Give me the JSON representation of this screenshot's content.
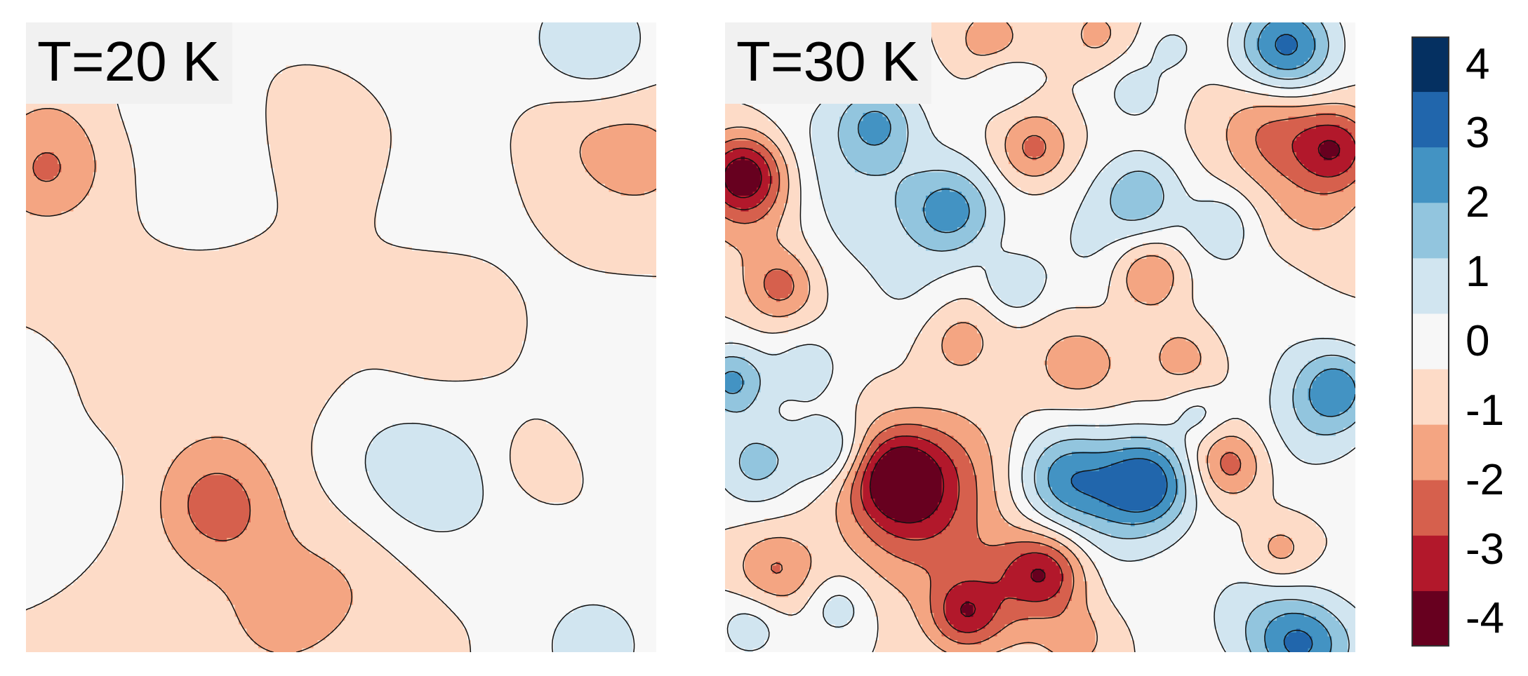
{
  "chart_data": [
    {
      "type": "heatmap",
      "subtype": "filled-contour",
      "title": "T=20 K",
      "xlabel": "",
      "ylabel": "",
      "colormap": "RdBu",
      "levels": [
        -4,
        -3,
        -2,
        -1,
        0,
        1,
        2,
        3,
        4
      ],
      "blobs": [
        {
          "x": 0.03,
          "y": 0.24,
          "amp": -1.4,
          "s": 0.055
        },
        {
          "x": 0.05,
          "y": 0.18,
          "amp": -0.9,
          "s": 0.09
        },
        {
          "x": 0.3,
          "y": 0.76,
          "amp": -1.8,
          "s": 0.06
        },
        {
          "x": 0.33,
          "y": 0.83,
          "amp": -0.9,
          "s": 0.09
        },
        {
          "x": 0.5,
          "y": 0.9,
          "amp": -0.9,
          "s": 0.08
        },
        {
          "x": 0.4,
          "y": 0.96,
          "amp": -0.9,
          "s": 0.06
        },
        {
          "x": 0.98,
          "y": 0.22,
          "amp": -1.2,
          "s": 0.08
        },
        {
          "x": 0.88,
          "y": 0.17,
          "amp": -0.9,
          "s": 0.08
        },
        {
          "x": 0.48,
          "y": 0.2,
          "amp": -0.8,
          "s": 0.06
        },
        {
          "x": 0.65,
          "y": 0.48,
          "amp": -0.8,
          "s": 0.06
        },
        {
          "x": 0.8,
          "y": 0.7,
          "amp": -0.7,
          "s": 0.04
        },
        {
          "x": 0.35,
          "y": 0.55,
          "amp": -0.6,
          "s": 0.12
        },
        {
          "x": 0.13,
          "y": 0.55,
          "amp": -0.5,
          "s": 0.1
        },
        {
          "x": 0.82,
          "y": 0.04,
          "amp": 0.5,
          "s": 0.18
        },
        {
          "x": 0.9,
          "y": 0.04,
          "amp": 1.8,
          "s": 0.06
        },
        {
          "x": 0.28,
          "y": 0.24,
          "amp": 0.8,
          "s": 0.07
        },
        {
          "x": 0.66,
          "y": 0.74,
          "amp": 1.4,
          "s": 0.08
        },
        {
          "x": 0.56,
          "y": 0.68,
          "amp": 0.8,
          "s": 0.08
        },
        {
          "x": 0.9,
          "y": 0.99,
          "amp": 1.8,
          "s": 0.06
        },
        {
          "x": 0.97,
          "y": 0.57,
          "amp": 0.9,
          "s": 0.07
        },
        {
          "x": 0.07,
          "y": 0.72,
          "amp": 0.8,
          "s": 0.06
        },
        {
          "x": 0.02,
          "y": 0.58,
          "amp": 0.7,
          "s": 0.06
        },
        {
          "x": 0.66,
          "y": 0.26,
          "amp": 0.6,
          "s": 0.05
        },
        {
          "x": 0.18,
          "y": 0.13,
          "amp": 0.5,
          "s": 0.06
        }
      ]
    },
    {
      "type": "heatmap",
      "subtype": "filled-contour",
      "title": "T=30 K",
      "xlabel": "",
      "ylabel": "",
      "colormap": "RdBu",
      "levels": [
        -4,
        -3,
        -2,
        -1,
        0,
        1,
        2,
        3,
        4
      ],
      "blobs": [
        {
          "x": 0.03,
          "y": 0.24,
          "amp": -4.4,
          "s": 0.045
        },
        {
          "x": 0.05,
          "y": 0.3,
          "amp": -1.6,
          "s": 0.07
        },
        {
          "x": 0.27,
          "y": 0.72,
          "amp": -4.3,
          "s": 0.055
        },
        {
          "x": 0.31,
          "y": 0.8,
          "amp": -2.2,
          "s": 0.08
        },
        {
          "x": 0.37,
          "y": 0.7,
          "amp": -1.2,
          "s": 0.07
        },
        {
          "x": 0.51,
          "y": 0.87,
          "amp": -3.2,
          "s": 0.045
        },
        {
          "x": 0.38,
          "y": 0.94,
          "amp": -3.0,
          "s": 0.04
        },
        {
          "x": 0.46,
          "y": 0.9,
          "amp": -1.6,
          "s": 0.07
        },
        {
          "x": 0.97,
          "y": 0.2,
          "amp": -3.3,
          "s": 0.045
        },
        {
          "x": 0.87,
          "y": 0.17,
          "amp": -2.2,
          "s": 0.06
        },
        {
          "x": 0.93,
          "y": 0.3,
          "amp": -1.1,
          "s": 0.07
        },
        {
          "x": 0.67,
          "y": 0.4,
          "amp": -2.6,
          "s": 0.04
        },
        {
          "x": 0.49,
          "y": 0.2,
          "amp": -2.4,
          "s": 0.04
        },
        {
          "x": 0.09,
          "y": 0.42,
          "amp": -2.4,
          "s": 0.04
        },
        {
          "x": 0.8,
          "y": 0.7,
          "amp": -2.6,
          "s": 0.04
        },
        {
          "x": 0.56,
          "y": 0.54,
          "amp": -1.6,
          "s": 0.055
        },
        {
          "x": 0.37,
          "y": 0.5,
          "amp": -1.6,
          "s": 0.045
        },
        {
          "x": 0.73,
          "y": 0.53,
          "amp": -1.5,
          "s": 0.045
        },
        {
          "x": 0.08,
          "y": 0.87,
          "amp": -2.1,
          "s": 0.045
        },
        {
          "x": 0.88,
          "y": 0.84,
          "amp": -1.7,
          "s": 0.035
        },
        {
          "x": 0.42,
          "y": 0.03,
          "amp": -1.7,
          "s": 0.04
        },
        {
          "x": 0.59,
          "y": 0.02,
          "amp": -1.3,
          "s": 0.035
        },
        {
          "x": 0.56,
          "y": 0.98,
          "amp": -1.3,
          "s": 0.035
        },
        {
          "x": 0.89,
          "y": 0.04,
          "amp": 4.4,
          "s": 0.055
        },
        {
          "x": 0.67,
          "y": 0.73,
          "amp": 4.2,
          "s": 0.05
        },
        {
          "x": 0.54,
          "y": 0.72,
          "amp": 2.9,
          "s": 0.055
        },
        {
          "x": 0.6,
          "y": 0.78,
          "amp": 1.6,
          "s": 0.08
        },
        {
          "x": 0.36,
          "y": 0.3,
          "amp": 3.0,
          "s": 0.05
        },
        {
          "x": 0.2,
          "y": 0.25,
          "amp": 1.8,
          "s": 0.11
        },
        {
          "x": 0.24,
          "y": 0.16,
          "amp": 2.2,
          "s": 0.04
        },
        {
          "x": 0.01,
          "y": 0.57,
          "amp": 3.2,
          "s": 0.04
        },
        {
          "x": 0.05,
          "y": 0.7,
          "amp": 2.3,
          "s": 0.05
        },
        {
          "x": 0.17,
          "y": 0.68,
          "amp": 2.3,
          "s": 0.04
        },
        {
          "x": 0.13,
          "y": 0.55,
          "amp": 1.6,
          "s": 0.04
        },
        {
          "x": 0.97,
          "y": 0.58,
          "amp": 3.0,
          "s": 0.045
        },
        {
          "x": 0.93,
          "y": 0.64,
          "amp": 1.4,
          "s": 0.07
        },
        {
          "x": 0.66,
          "y": 0.27,
          "amp": 2.2,
          "s": 0.045
        },
        {
          "x": 0.6,
          "y": 0.35,
          "amp": 1.2,
          "s": 0.08
        },
        {
          "x": 0.79,
          "y": 0.32,
          "amp": 1.6,
          "s": 0.04
        },
        {
          "x": 0.84,
          "y": 0.45,
          "amp": 1.0,
          "s": 0.07
        },
        {
          "x": 0.91,
          "y": 0.99,
          "amp": 3.2,
          "s": 0.05
        },
        {
          "x": 0.84,
          "y": 0.94,
          "amp": 1.4,
          "s": 0.07
        },
        {
          "x": 0.04,
          "y": 0.96,
          "amp": 1.6,
          "s": 0.04
        },
        {
          "x": 0.18,
          "y": 0.93,
          "amp": 1.6,
          "s": 0.035
        },
        {
          "x": 0.46,
          "y": 0.42,
          "amp": 1.6,
          "s": 0.035
        },
        {
          "x": 0.65,
          "y": 0.11,
          "amp": 1.4,
          "s": 0.04
        },
        {
          "x": 0.44,
          "y": 0.09,
          "amp": 1.3,
          "s": 0.03
        },
        {
          "x": 0.71,
          "y": 0.04,
          "amp": 1.2,
          "s": 0.03
        },
        {
          "x": 0.75,
          "y": 0.62,
          "amp": 1.3,
          "s": 0.03
        },
        {
          "x": 0.3,
          "y": 0.44,
          "amp": 0.8,
          "s": 0.06
        },
        {
          "x": 0.99,
          "y": 0.99,
          "amp": 1.0,
          "s": 0.06
        }
      ]
    }
  ],
  "colorbar": {
    "tick_labels": [
      "4",
      "3",
      "2",
      "1",
      "0",
      "-1",
      "-2",
      "-3",
      "-4"
    ],
    "colors": [
      "#053061",
      "#2166ac",
      "#4393c3",
      "#92c5de",
      "#d1e5f0",
      "#f7f7f7",
      "#fddbc7",
      "#f4a582",
      "#d6604d",
      "#b2182b",
      "#67001f"
    ]
  }
}
